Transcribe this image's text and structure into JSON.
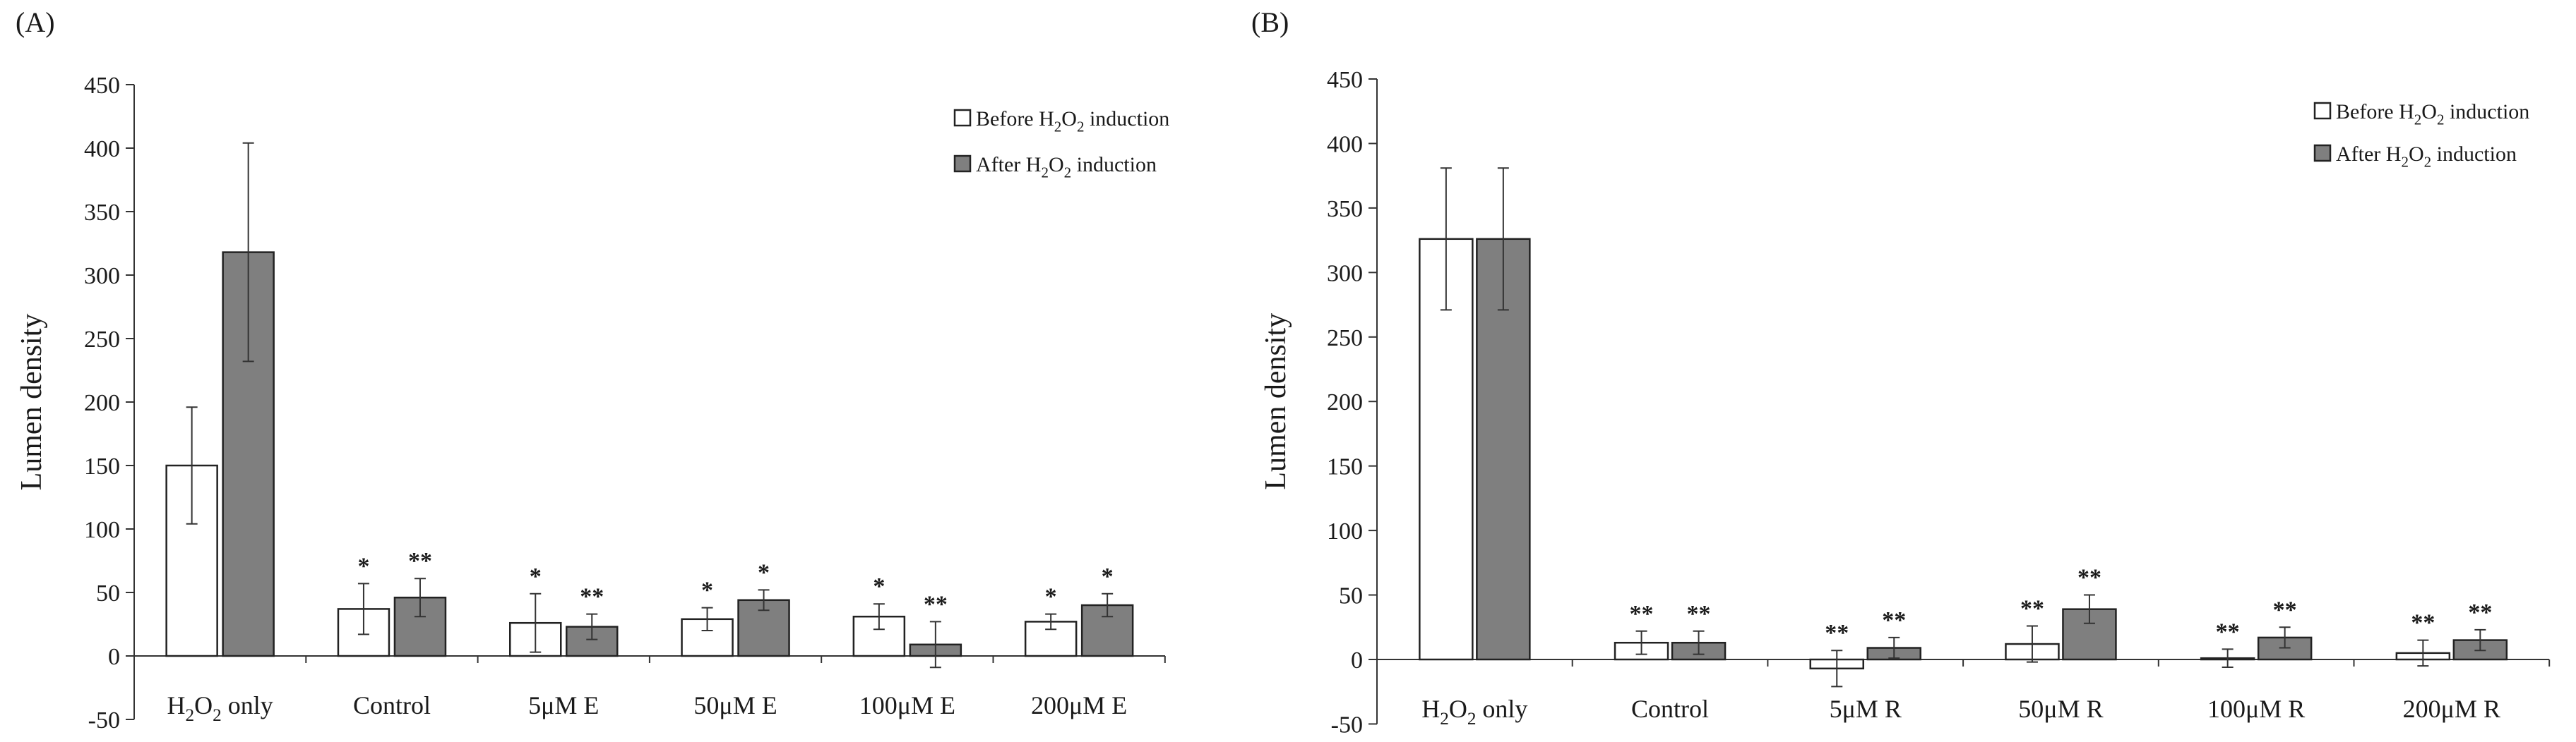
{
  "panels": [
    {
      "panel_label": "(A)",
      "legend": {
        "before": {
          "prefix": "Before H",
          "sub1": "2",
          "mid": "O",
          "sub2": "2",
          "suffix": " induction"
        },
        "after": {
          "prefix": "After H",
          "sub1": "2",
          "mid": "O",
          "sub2": "2",
          "suffix": " induction"
        }
      },
      "first_category": {
        "prefix": "H",
        "sub1": "2",
        "mid": "O",
        "sub2": "2",
        "suffix": " only"
      }
    },
    {
      "panel_label": "(B)",
      "legend": {
        "before": {
          "prefix": "Before H",
          "sub1": "2",
          "mid": "O",
          "sub2": "2",
          "suffix": " induction"
        },
        "after": {
          "prefix": "After H",
          "sub1": "2",
          "mid": "O",
          "sub2": "2",
          "suffix": " induction"
        }
      },
      "first_category": {
        "prefix": "H",
        "sub1": "2",
        "mid": "O",
        "sub2": "2",
        "suffix": " only"
      }
    }
  ],
  "chart_data": [
    {
      "type": "bar",
      "title": "",
      "xlabel": "",
      "ylabel": "Lumen density",
      "ylim": [
        -50,
        450
      ],
      "yticks": [
        -50,
        0,
        50,
        100,
        150,
        200,
        250,
        300,
        350,
        400,
        450
      ],
      "grid": false,
      "legend_position": "top-right",
      "categories": [
        "H2O2 only",
        "Control",
        "5μM E",
        "50μM E",
        "100μM E",
        "200μM E"
      ],
      "series": [
        {
          "name": "Before H2O2 induction",
          "color": "#ffffff",
          "values": [
            150,
            37,
            26,
            29,
            31,
            27
          ],
          "errors": [
            46,
            20,
            23,
            9,
            10,
            6
          ],
          "sig": [
            "",
            "*",
            "*",
            "*",
            "*",
            "*"
          ]
        },
        {
          "name": "After H2O2 induction",
          "color": "#7f7f7f",
          "values": [
            318,
            46,
            23,
            44,
            9,
            40
          ],
          "errors": [
            86,
            15,
            10,
            8,
            18,
            9
          ],
          "sig": [
            "",
            "**",
            "**",
            "*",
            "**",
            "*"
          ]
        }
      ]
    },
    {
      "type": "bar",
      "title": "",
      "xlabel": "",
      "ylabel": "Lumen density",
      "ylim": [
        -50,
        450
      ],
      "yticks": [
        -50,
        0,
        50,
        100,
        150,
        200,
        250,
        300,
        350,
        400,
        450
      ],
      "grid": false,
      "legend_position": "top-right",
      "categories": [
        "H2O2 only",
        "Control",
        "5μM R",
        "50μM R",
        "100μM R",
        "200μM R"
      ],
      "series": [
        {
          "name": "Before H2O2 induction",
          "color": "#ffffff",
          "values": [
            326,
            13,
            -7,
            12,
            1,
            5
          ],
          "errors": [
            55,
            9,
            14,
            14,
            7,
            10
          ],
          "sig": [
            "",
            "**",
            "**",
            "**",
            "**",
            "**"
          ]
        },
        {
          "name": "After H2O2 induction",
          "color": "#7f7f7f",
          "values": [
            326,
            13,
            9,
            39,
            17,
            15
          ],
          "errors": [
            55,
            9,
            8,
            11,
            8,
            8
          ],
          "sig": [
            "",
            "**",
            "**",
            "**",
            "**",
            "**"
          ]
        }
      ]
    }
  ]
}
